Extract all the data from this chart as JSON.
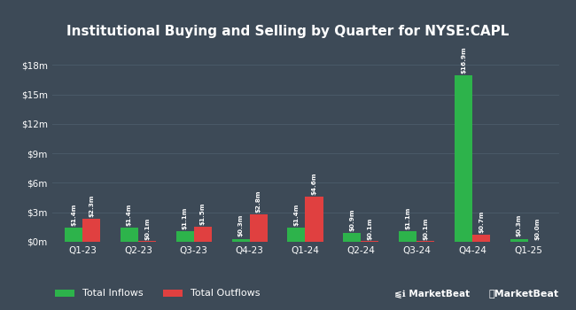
{
  "title": "Institutional Buying and Selling by Quarter for NYSE:CAPL",
  "quarters": [
    "Q1-23",
    "Q2-23",
    "Q3-23",
    "Q4-23",
    "Q1-24",
    "Q2-24",
    "Q3-24",
    "Q4-24",
    "Q1-25"
  ],
  "inflows": [
    1.4,
    1.4,
    1.1,
    0.3,
    1.4,
    0.9,
    1.1,
    16.9,
    0.3
  ],
  "outflows": [
    2.3,
    0.1,
    1.5,
    2.8,
    4.6,
    0.1,
    0.1,
    0.7,
    0.0
  ],
  "inflow_labels": [
    "$1.4m",
    "$1.4m",
    "$1.1m",
    "$0.3m",
    "$1.4m",
    "$0.9m",
    "$1.1m",
    "$16.9m",
    "$0.3m"
  ],
  "outflow_labels": [
    "$2.3m",
    "$0.1m",
    "$1.5m",
    "$2.8m",
    "$4.6m",
    "$0.1m",
    "$0.1m",
    "$0.7m",
    "$0.0m"
  ],
  "inflow_color": "#2db34b",
  "outflow_color": "#e04040",
  "background_color": "#3d4a57",
  "grid_color": "#4a5a68",
  "text_color": "#ffffff",
  "ylabel_ticks": [
    "$0m",
    "$3m",
    "$6m",
    "$9m",
    "$12m",
    "$15m",
    "$18m"
  ],
  "ytick_vals": [
    0,
    3,
    6,
    9,
    12,
    15,
    18
  ],
  "ylim": [
    0,
    20.5
  ],
  "bar_width": 0.32,
  "legend_labels": [
    "Total Inflows",
    "Total Outflows"
  ],
  "watermark": "MarketBeat"
}
